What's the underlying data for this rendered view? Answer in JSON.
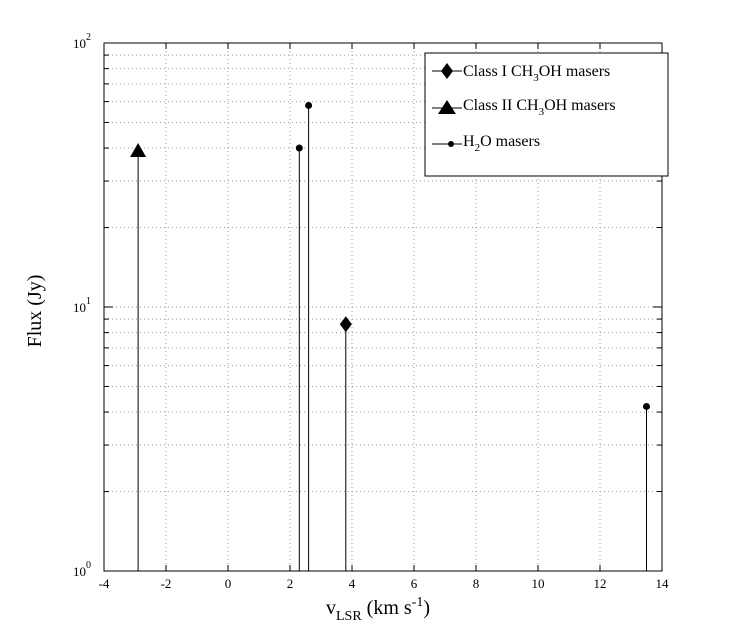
{
  "chart_data": {
    "type": "scatter",
    "xlabel": {
      "main": "v",
      "sub": "LSR",
      "rest": " (km s",
      "sup": "-1",
      "end": ")"
    },
    "ylabel": "Flux (Jy)",
    "xlim": [
      -4,
      14
    ],
    "ylim": [
      1,
      100
    ],
    "yscale": "log",
    "grid": true,
    "legend_position": "top-right",
    "x_ticks": [
      -4,
      -2,
      0,
      2,
      4,
      6,
      8,
      10,
      12,
      14
    ],
    "y_ticks": [
      {
        "base": "10",
        "exp": "0",
        "value": 1
      },
      {
        "base": "10",
        "exp": "1",
        "value": 10
      },
      {
        "base": "10",
        "exp": "2",
        "value": 100
      }
    ],
    "series": [
      {
        "key": "class1",
        "legend": [
          "Class I CH",
          "3",
          "OH masers"
        ],
        "marker": "diamond",
        "points": [
          {
            "x": 3.8,
            "y": 8.6
          }
        ]
      },
      {
        "key": "class2",
        "legend": [
          "Class II CH",
          "3",
          "OH masers"
        ],
        "marker": "triangle",
        "points": [
          {
            "x": -2.9,
            "y": 39
          }
        ]
      },
      {
        "key": "h2o",
        "legend": [
          "H",
          "2",
          "O masers"
        ],
        "marker": "dot",
        "points": [
          {
            "x": 2.3,
            "y": 40
          },
          {
            "x": 2.6,
            "y": 58
          },
          {
            "x": 13.5,
            "y": 4.2
          }
        ]
      }
    ]
  },
  "colors": {
    "marker": "#000000",
    "grid": "#9a9a9a",
    "axis": "#000000"
  }
}
